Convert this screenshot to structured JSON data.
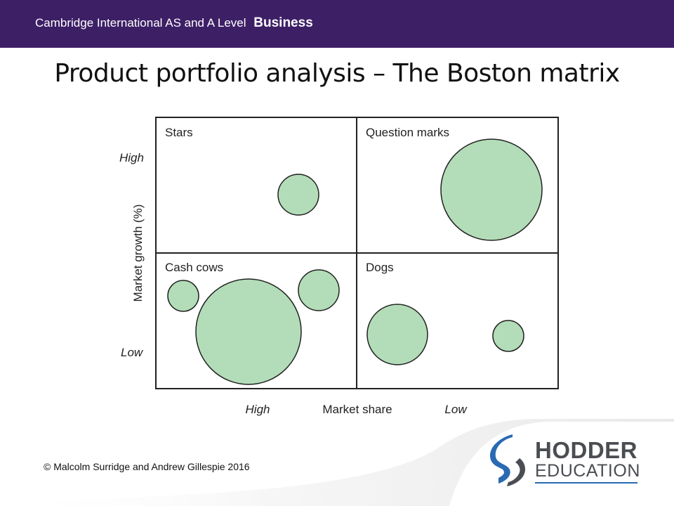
{
  "header": {
    "course": "Cambridge International AS and A Level",
    "subject": "Business",
    "bar_color": "#3d1f66"
  },
  "page_title": "Product portfolio analysis – The Boston matrix",
  "matrix": {
    "y_axis_label": "Market growth (%)",
    "y_high_label": "High",
    "y_low_label": "Low",
    "x_axis_label": "Market share",
    "x_high_label": "High",
    "x_low_label": "Low",
    "circle_fill": "#b3ddb8",
    "quadrants": {
      "stars": "Stars",
      "question_marks": "Question marks",
      "cash_cows": "Cash cows",
      "dogs": "Dogs"
    }
  },
  "footer": {
    "copyright": "© Malcolm Surridge and Andrew Gillespie 2016"
  },
  "logo": {
    "line1": "HODDER",
    "line2": "EDUCATION",
    "icon": "hodder-s-mark-icon",
    "brand_color": "#2a6ab3"
  }
}
